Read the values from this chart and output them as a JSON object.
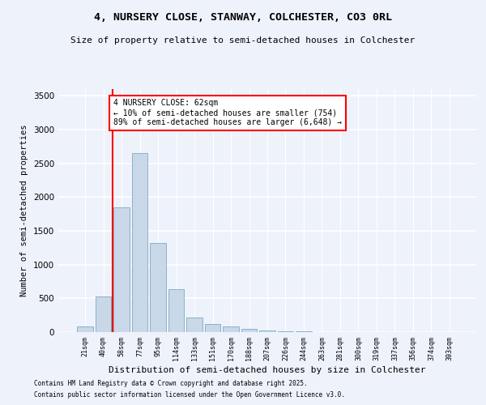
{
  "title1": "4, NURSERY CLOSE, STANWAY, COLCHESTER, CO3 0RL",
  "title2": "Size of property relative to semi-detached houses in Colchester",
  "xlabel": "Distribution of semi-detached houses by size in Colchester",
  "ylabel": "Number of semi-detached properties",
  "categories": [
    "21sqm",
    "40sqm",
    "58sqm",
    "77sqm",
    "95sqm",
    "114sqm",
    "133sqm",
    "151sqm",
    "170sqm",
    "188sqm",
    "207sqm",
    "226sqm",
    "244sqm",
    "263sqm",
    "281sqm",
    "300sqm",
    "319sqm",
    "337sqm",
    "356sqm",
    "374sqm",
    "393sqm"
  ],
  "values": [
    80,
    530,
    1850,
    2650,
    1320,
    640,
    220,
    120,
    80,
    50,
    30,
    15,
    10,
    5,
    3,
    2,
    1,
    1,
    0,
    0,
    0
  ],
  "bar_color": "#c8d8e8",
  "bar_edge_color": "#7faabf",
  "vline_x": 1.5,
  "vline_color": "red",
  "annotation_text": "4 NURSERY CLOSE: 62sqm\n← 10% of semi-detached houses are smaller (754)\n89% of semi-detached houses are larger (6,648) →",
  "annotation_box_color": "white",
  "annotation_box_edge": "red",
  "footer1": "Contains HM Land Registry data © Crown copyright and database right 2025.",
  "footer2": "Contains public sector information licensed under the Open Government Licence v3.0.",
  "background_color": "#eef2fb",
  "ylim": [
    0,
    3600
  ],
  "yticks": [
    0,
    500,
    1000,
    1500,
    2000,
    2500,
    3000,
    3500
  ]
}
